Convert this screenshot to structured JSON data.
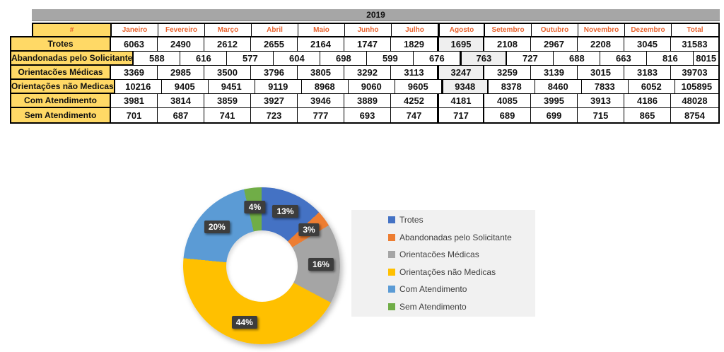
{
  "table": {
    "title": "2019",
    "corner_label": "#",
    "columns": [
      "Janeiro",
      "Fevereiro",
      "Março",
      "Abril",
      "Maio",
      "Junho",
      "Julho",
      "Agosto",
      "Setembro",
      "Outubro",
      "Novembro",
      "Dezembro",
      "Total"
    ],
    "highlighted_column": "Agosto",
    "highlighted_column_index": 7,
    "rows": [
      {
        "label": "Trotes",
        "values": [
          6063,
          2490,
          2612,
          2655,
          2164,
          1747,
          1829,
          1695,
          2108,
          2967,
          2208,
          3045,
          31583
        ],
        "agosto_highlight": true
      },
      {
        "label": "Abandonadas pelo Solicitante",
        "values": [
          588,
          616,
          577,
          604,
          698,
          599,
          676,
          763,
          727,
          688,
          663,
          816,
          8015
        ],
        "agosto_highlight": true
      },
      {
        "label": "Orientacões Médicas",
        "values": [
          3369,
          2985,
          3500,
          3796,
          3805,
          3292,
          3113,
          3247,
          3259,
          3139,
          3015,
          3183,
          39703
        ],
        "agosto_highlight": true
      },
      {
        "label": "Orientações não Medicas",
        "values": [
          10216,
          9405,
          9451,
          9119,
          8968,
          9060,
          9605,
          9348,
          8378,
          8460,
          7833,
          6052,
          105895
        ],
        "agosto_highlight": true
      },
      {
        "label": "Com Atendimento",
        "values": [
          3981,
          3814,
          3859,
          3927,
          3946,
          3889,
          4252,
          4181,
          4085,
          3995,
          3913,
          4186,
          48028
        ],
        "agosto_highlight": false
      },
      {
        "label": "Sem Atendimento",
        "values": [
          701,
          687,
          741,
          723,
          777,
          693,
          747,
          717,
          689,
          699,
          715,
          865,
          8754
        ],
        "agosto_highlight": false
      }
    ],
    "colors": {
      "title_bar_bg": "#A6A6A6",
      "row_label_bg": "#FFD966",
      "header_text": "#E8632E",
      "agosto_highlight_bg": "#EFEFEF",
      "border": "#000000"
    }
  },
  "chart_data": {
    "type": "pie",
    "subtype": "donut",
    "title": "",
    "categories": [
      "Trotes",
      "Abandonadas pelo Solicitante",
      "Orientacões Médicas",
      "Orientações não Medicas",
      "Com Atendimento",
      "Sem Atendimento"
    ],
    "values": [
      31583,
      8015,
      39703,
      105895,
      48028,
      8754
    ],
    "percent_labels": [
      "13%",
      "3%",
      "16%",
      "44%",
      "20%",
      "4%"
    ],
    "colors": [
      "#4472C4",
      "#ED7D31",
      "#A5A5A5",
      "#FFC000",
      "#5B9BD5",
      "#70AD47"
    ],
    "start_angle_deg": 0,
    "direction": "clockwise",
    "legend_position": "right",
    "label_box_bg": "#3D3D3D",
    "label_box_text_color": "#FFFFFF"
  }
}
